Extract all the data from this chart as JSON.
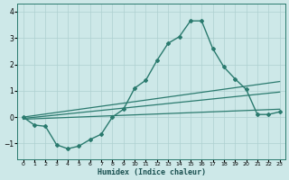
{
  "title": "",
  "xlabel": "Humidex (Indice chaleur)",
  "bg_color": "#cde8e8",
  "line_color": "#2a7a6e",
  "grid_color": "#aed0d0",
  "xlim": [
    -0.5,
    23.5
  ],
  "ylim": [
    -1.6,
    4.3
  ],
  "yticks": [
    -1,
    0,
    1,
    2,
    3,
    4
  ],
  "xticks": [
    0,
    1,
    2,
    3,
    4,
    5,
    6,
    7,
    8,
    9,
    10,
    11,
    12,
    13,
    14,
    15,
    16,
    17,
    18,
    19,
    20,
    21,
    22,
    23
  ],
  "line1_x": [
    0,
    1,
    2,
    3,
    4,
    5,
    6,
    7,
    8,
    9,
    10,
    11,
    12,
    13,
    14,
    15,
    16,
    17,
    18,
    19,
    20,
    21,
    22,
    23
  ],
  "line1_y": [
    0.0,
    -0.3,
    -0.35,
    -1.05,
    -1.2,
    -1.1,
    -0.85,
    -0.65,
    0.0,
    0.3,
    1.1,
    1.4,
    2.15,
    2.8,
    3.05,
    3.65,
    3.65,
    2.6,
    1.9,
    1.45,
    1.05,
    0.1,
    0.1,
    0.2
  ],
  "line2_x": [
    0,
    23
  ],
  "line2_y": [
    0.0,
    1.35
  ],
  "line3_x": [
    0,
    23
  ],
  "line3_y": [
    -0.05,
    0.95
  ],
  "line4_x": [
    0,
    23
  ],
  "line4_y": [
    -0.08,
    0.3
  ]
}
